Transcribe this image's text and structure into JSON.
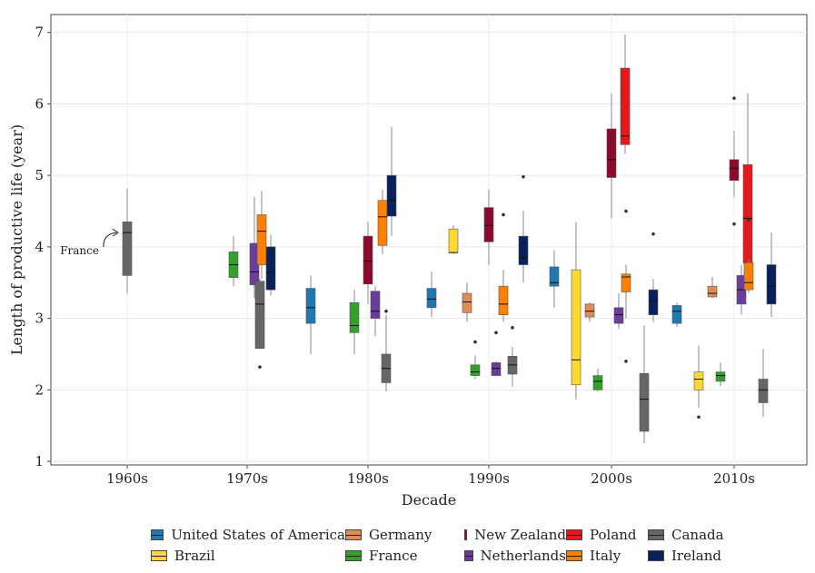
{
  "chart_data": {
    "type": "boxplot",
    "title": "",
    "xlabel": "Decade",
    "ylabel": "Length of productive life (year)",
    "ylim": [
      0.95,
      7.25
    ],
    "yticks": [
      1,
      2,
      3,
      4,
      5,
      6,
      7
    ],
    "categories": [
      "1960s",
      "1970s",
      "1980s",
      "1990s",
      "2000s",
      "2010s"
    ],
    "annotation": {
      "text": "France",
      "decade": "1960s",
      "value": 4.2
    },
    "grid": true,
    "legend_position": "bottom",
    "series": [
      {
        "name": "United States of America",
        "color": "#1F78B4",
        "boxes": [
          {
            "decade": "1980s",
            "min": 2.5,
            "q1": 2.93,
            "median": 3.15,
            "q3": 3.42,
            "max": 3.6,
            "outliers": []
          },
          {
            "decade": "1990s",
            "min": 3.02,
            "q1": 3.15,
            "median": 3.27,
            "q3": 3.42,
            "max": 3.65,
            "outliers": []
          },
          {
            "decade": "2000s",
            "min": 3.15,
            "q1": 3.45,
            "median": 3.5,
            "q3": 3.72,
            "max": 3.95,
            "outliers": []
          },
          {
            "decade": "2010s",
            "min": 2.88,
            "q1": 2.93,
            "median": 3.1,
            "q3": 3.18,
            "max": 3.22,
            "outliers": []
          }
        ]
      },
      {
        "name": "Brazil",
        "color": "#FFD92F",
        "boxes": [
          {
            "decade": "1990s",
            "min": 3.9,
            "q1": 3.92,
            "median": 3.92,
            "q3": 4.25,
            "max": 4.3,
            "outliers": []
          },
          {
            "decade": "2000s",
            "min": 1.87,
            "q1": 2.07,
            "median": 2.42,
            "q3": 3.68,
            "max": 4.35,
            "outliers": []
          },
          {
            "decade": "2010s",
            "min": 1.75,
            "q1": 2.0,
            "median": 2.15,
            "q3": 2.25,
            "max": 2.62,
            "outliers": [
              1.62
            ]
          }
        ]
      },
      {
        "name": "Germany",
        "color": "#E38B55",
        "boxes": [
          {
            "decade": "1990s",
            "min": 2.95,
            "q1": 3.08,
            "median": 3.23,
            "q3": 3.35,
            "max": 3.5,
            "outliers": []
          },
          {
            "decade": "2000s",
            "min": 2.95,
            "q1": 3.02,
            "median": 3.1,
            "q3": 3.2,
            "max": 3.22,
            "outliers": []
          },
          {
            "decade": "2010s",
            "min": 3.28,
            "q1": 3.3,
            "median": 3.35,
            "q3": 3.45,
            "max": 3.58,
            "outliers": []
          }
        ]
      },
      {
        "name": "France",
        "color": "#33A02C",
        "boxes": [
          {
            "decade": "1970s",
            "min": 3.45,
            "q1": 3.57,
            "median": 3.75,
            "q3": 3.93,
            "max": 4.15,
            "outliers": []
          },
          {
            "decade": "1980s",
            "min": 2.5,
            "q1": 2.8,
            "median": 2.9,
            "q3": 3.22,
            "max": 3.4,
            "outliers": []
          },
          {
            "decade": "1990s",
            "min": 2.15,
            "q1": 2.2,
            "median": 2.25,
            "q3": 2.35,
            "max": 2.48,
            "outliers": [
              2.67
            ]
          },
          {
            "decade": "2000s",
            "min": 1.98,
            "q1": 2.0,
            "median": 2.12,
            "q3": 2.2,
            "max": 2.3,
            "outliers": []
          },
          {
            "decade": "2010s",
            "min": 2.05,
            "q1": 2.12,
            "median": 2.2,
            "q3": 2.25,
            "max": 2.38,
            "outliers": []
          }
        ]
      },
      {
        "name": "New Zealand",
        "color": "#8B0A2E",
        "boxes": [
          {
            "decade": "1980s",
            "min": 3.2,
            "q1": 3.48,
            "median": 3.8,
            "q3": 4.15,
            "max": 4.35,
            "outliers": []
          },
          {
            "decade": "1990s",
            "min": 3.75,
            "q1": 4.07,
            "median": 4.3,
            "q3": 4.55,
            "max": 4.8,
            "outliers": []
          },
          {
            "decade": "2000s",
            "min": 4.4,
            "q1": 4.97,
            "median": 5.22,
            "q3": 5.65,
            "max": 6.15,
            "outliers": []
          },
          {
            "decade": "2010s",
            "min": 4.7,
            "q1": 4.93,
            "median": 5.1,
            "q3": 5.22,
            "max": 5.62,
            "outliers": [
              6.08,
              4.32
            ]
          }
        ]
      },
      {
        "name": "Netherlands",
        "color": "#6A3D9A",
        "boxes": [
          {
            "decade": "1970s",
            "min": 3.28,
            "q1": 3.47,
            "median": 3.65,
            "q3": 4.05,
            "max": 4.7,
            "outliers": []
          },
          {
            "decade": "1980s",
            "min": 2.75,
            "q1": 3.0,
            "median": 3.1,
            "q3": 3.38,
            "max": 3.45,
            "outliers": []
          },
          {
            "decade": "1990s",
            "min": 2.2,
            "q1": 2.2,
            "median": 2.3,
            "q3": 2.38,
            "max": 2.4,
            "outliers": [
              2.8
            ]
          },
          {
            "decade": "2000s",
            "min": 2.85,
            "q1": 2.93,
            "median": 3.05,
            "q3": 3.15,
            "max": 3.35,
            "outliers": []
          },
          {
            "decade": "2010s",
            "min": 3.05,
            "q1": 3.2,
            "median": 3.4,
            "q3": 3.6,
            "max": 3.75,
            "outliers": []
          }
        ]
      },
      {
        "name": "Poland",
        "color": "#E31A1C",
        "boxes": [
          {
            "decade": "2000s",
            "min": 5.3,
            "q1": 5.43,
            "median": 5.55,
            "q3": 6.5,
            "max": 6.97,
            "outliers": []
          },
          {
            "decade": "2010s",
            "min": 3.6,
            "q1": 3.77,
            "median": 4.4,
            "q3": 5.15,
            "max": 6.15,
            "outliers": []
          }
        ]
      },
      {
        "name": "Italy",
        "color": "#FF7F00",
        "boxes": [
          {
            "decade": "1970s",
            "min": 3.55,
            "q1": 3.75,
            "median": 4.22,
            "q3": 4.45,
            "max": 4.78,
            "outliers": []
          },
          {
            "decade": "1980s",
            "min": 3.9,
            "q1": 4.02,
            "median": 4.42,
            "q3": 4.65,
            "max": 4.8,
            "outliers": []
          },
          {
            "decade": "1990s",
            "min": 2.95,
            "q1": 3.05,
            "median": 3.2,
            "q3": 3.45,
            "max": 3.68,
            "outliers": [
              4.45
            ]
          },
          {
            "decade": "2000s",
            "min": 3.0,
            "q1": 3.37,
            "median": 3.58,
            "q3": 3.62,
            "max": 3.75,
            "outliers": [
              4.5,
              2.4
            ]
          },
          {
            "decade": "2010s",
            "min": 3.35,
            "q1": 3.4,
            "median": 3.5,
            "q3": 3.78,
            "max": 3.82,
            "outliers": [
              4.38
            ]
          }
        ]
      },
      {
        "name": "Canada",
        "color": "#666666",
        "boxes": [
          {
            "decade": "1960s",
            "min": 3.35,
            "q1": 3.6,
            "median": 4.2,
            "q3": 4.35,
            "max": 4.82,
            "outliers": []
          },
          {
            "decade": "1970s",
            "min": 2.58,
            "q1": 2.58,
            "median": 3.2,
            "q3": 3.52,
            "max": 3.55,
            "outliers": [
              2.32
            ]
          },
          {
            "decade": "1980s",
            "min": 1.98,
            "q1": 2.1,
            "median": 2.3,
            "q3": 2.5,
            "max": 3.05,
            "outliers": [
              3.1
            ]
          },
          {
            "decade": "1990s",
            "min": 2.05,
            "q1": 2.22,
            "median": 2.35,
            "q3": 2.47,
            "max": 2.6,
            "outliers": [
              2.87
            ]
          },
          {
            "decade": "2000s",
            "min": 1.25,
            "q1": 1.42,
            "median": 1.87,
            "q3": 2.23,
            "max": 2.9,
            "outliers": []
          },
          {
            "decade": "2010s",
            "min": 1.62,
            "q1": 1.82,
            "median": 2.0,
            "q3": 2.15,
            "max": 2.57,
            "outliers": []
          }
        ]
      },
      {
        "name": "Ireland",
        "color": "#08205C",
        "boxes": [
          {
            "decade": "1970s",
            "min": 3.32,
            "q1": 3.4,
            "median": 3.65,
            "q3": 4.0,
            "max": 4.17,
            "outliers": []
          },
          {
            "decade": "1980s",
            "min": 4.15,
            "q1": 4.43,
            "median": 4.65,
            "q3": 5.0,
            "max": 5.68,
            "outliers": []
          },
          {
            "decade": "1990s",
            "min": 3.5,
            "q1": 3.75,
            "median": 3.85,
            "q3": 4.15,
            "max": 4.5,
            "outliers": [
              4.98
            ]
          },
          {
            "decade": "2000s",
            "min": 2.95,
            "q1": 3.05,
            "median": 3.25,
            "q3": 3.4,
            "max": 3.55,
            "outliers": [
              4.18
            ]
          },
          {
            "decade": "2010s",
            "min": 3.02,
            "q1": 3.2,
            "median": 3.45,
            "q3": 3.75,
            "max": 4.2,
            "outliers": []
          }
        ]
      }
    ]
  },
  "legend": {
    "items": [
      {
        "name": "United States of America",
        "color": "#1F78B4"
      },
      {
        "name": "Germany",
        "color": "#E38B55"
      },
      {
        "name": "New Zealand",
        "color": "#8B0A2E"
      },
      {
        "name": "Poland",
        "color": "#E31A1C"
      },
      {
        "name": "Canada",
        "color": "#666666"
      },
      {
        "name": "Brazil",
        "color": "#FFD92F"
      },
      {
        "name": "France",
        "color": "#33A02C"
      },
      {
        "name": "Netherlands",
        "color": "#6A3D9A"
      },
      {
        "name": "Italy",
        "color": "#FF7F00"
      },
      {
        "name": "Ireland",
        "color": "#08205C"
      }
    ]
  }
}
